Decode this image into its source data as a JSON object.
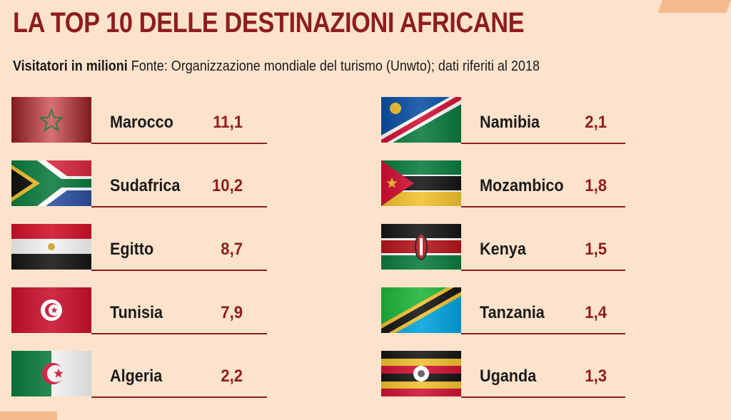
{
  "title": "LA TOP 10 DELLE DESTINAZIONI AFRICANE",
  "subtitle_bold": "Visitatori in milioni",
  "subtitle_rest": "Fonte: Organizzazione mondiale del turismo (Unwto); dati riferiti al 2018",
  "colors": {
    "accent": "#8e1d1f",
    "background": "#fde3cc"
  },
  "chart_data": {
    "type": "table",
    "title": "LA TOP 10 DELLE DESTINAZIONI AFRICANE",
    "subtitle": "Visitatori in milioni",
    "columns": [
      {
        "rows": [
          {
            "country": "Marocco",
            "value": "11,1",
            "flag": "morocco-flag"
          },
          {
            "country": "Sudafrica",
            "value": "10,2",
            "flag": "south-africa-flag"
          },
          {
            "country": "Egitto",
            "value": "8,7",
            "flag": "egypt-flag"
          },
          {
            "country": "Tunisia",
            "value": "7,9",
            "flag": "tunisia-flag"
          },
          {
            "country": "Algeria",
            "value": "2,2",
            "flag": "algeria-flag"
          }
        ]
      },
      {
        "rows": [
          {
            "country": "Namibia",
            "value": "2,1",
            "flag": "namibia-flag"
          },
          {
            "country": "Mozambico",
            "value": "1,8",
            "flag": "mozambique-flag"
          },
          {
            "country": "Kenya",
            "value": "1,5",
            "flag": "kenya-flag"
          },
          {
            "country": "Tanzania",
            "value": "1,4",
            "flag": "tanzania-flag"
          },
          {
            "country": "Uganda",
            "value": "1,3",
            "flag": "uganda-flag"
          }
        ]
      }
    ]
  }
}
